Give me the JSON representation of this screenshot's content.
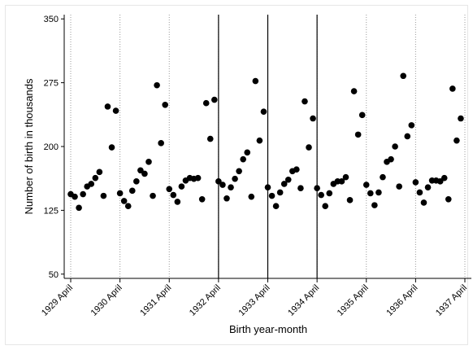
{
  "chart_data": {
    "type": "scatter",
    "title": "",
    "xlabel": "Birth year-month",
    "ylabel": "Number of birth in thousands",
    "ylim": [
      45,
      355
    ],
    "yticks": [
      50,
      125,
      200,
      275,
      350
    ],
    "x_tick_labels": [
      "1929 April",
      "1930 April",
      "1931 April",
      "1932 April",
      "1933 April",
      "1934 April",
      "1935 April",
      "1936 April",
      "1937 April"
    ],
    "x_range_months": [
      0,
      96
    ],
    "solid_vertical_lines_at_tick": [
      "1932 April",
      "1933 April",
      "1934 April"
    ],
    "dotted_vertical_gridlines": true,
    "legend": "none",
    "marker_color": "#000000",
    "points": [
      {
        "x": 0,
        "y": 144
      },
      {
        "x": 1,
        "y": 141
      },
      {
        "x": 2,
        "y": 128
      },
      {
        "x": 3,
        "y": 144
      },
      {
        "x": 4,
        "y": 153
      },
      {
        "x": 5,
        "y": 156
      },
      {
        "x": 6,
        "y": 163
      },
      {
        "x": 7,
        "y": 170
      },
      {
        "x": 8,
        "y": 142
      },
      {
        "x": 9,
        "y": 247
      },
      {
        "x": 10,
        "y": 199
      },
      {
        "x": 11,
        "y": 242
      },
      {
        "x": 12,
        "y": 145
      },
      {
        "x": 13,
        "y": 136
      },
      {
        "x": 14,
        "y": 130
      },
      {
        "x": 15,
        "y": 148
      },
      {
        "x": 16,
        "y": 159
      },
      {
        "x": 17,
        "y": 172
      },
      {
        "x": 18,
        "y": 168
      },
      {
        "x": 19,
        "y": 182
      },
      {
        "x": 20,
        "y": 142
      },
      {
        "x": 21,
        "y": 272
      },
      {
        "x": 22,
        "y": 204
      },
      {
        "x": 23,
        "y": 249
      },
      {
        "x": 24,
        "y": 150
      },
      {
        "x": 25,
        "y": 143
      },
      {
        "x": 26,
        "y": 135
      },
      {
        "x": 27,
        "y": 153
      },
      {
        "x": 28,
        "y": 160
      },
      {
        "x": 29,
        "y": 163
      },
      {
        "x": 30,
        "y": 162
      },
      {
        "x": 31,
        "y": 163
      },
      {
        "x": 32,
        "y": 138
      },
      {
        "x": 33,
        "y": 251
      },
      {
        "x": 34,
        "y": 209
      },
      {
        "x": 35,
        "y": 255
      },
      {
        "x": 36,
        "y": 159
      },
      {
        "x": 37,
        "y": 155
      },
      {
        "x": 38,
        "y": 139
      },
      {
        "x": 39,
        "y": 152
      },
      {
        "x": 40,
        "y": 162
      },
      {
        "x": 41,
        "y": 171
      },
      {
        "x": 42,
        "y": 185
      },
      {
        "x": 43,
        "y": 193
      },
      {
        "x": 44,
        "y": 141
      },
      {
        "x": 45,
        "y": 277
      },
      {
        "x": 46,
        "y": 207
      },
      {
        "x": 47,
        "y": 241
      },
      {
        "x": 48,
        "y": 152
      },
      {
        "x": 49,
        "y": 142
      },
      {
        "x": 50,
        "y": 130
      },
      {
        "x": 51,
        "y": 146
      },
      {
        "x": 52,
        "y": 156
      },
      {
        "x": 53,
        "y": 161
      },
      {
        "x": 54,
        "y": 171
      },
      {
        "x": 55,
        "y": 173
      },
      {
        "x": 56,
        "y": 151
      },
      {
        "x": 57,
        "y": 253
      },
      {
        "x": 58,
        "y": 199
      },
      {
        "x": 59,
        "y": 233
      },
      {
        "x": 60,
        "y": 151
      },
      {
        "x": 61,
        "y": 143
      },
      {
        "x": 62,
        "y": 130
      },
      {
        "x": 63,
        "y": 145
      },
      {
        "x": 64,
        "y": 156
      },
      {
        "x": 65,
        "y": 159
      },
      {
        "x": 66,
        "y": 159
      },
      {
        "x": 67,
        "y": 164
      },
      {
        "x": 68,
        "y": 137
      },
      {
        "x": 69,
        "y": 265
      },
      {
        "x": 70,
        "y": 214
      },
      {
        "x": 71,
        "y": 237
      },
      {
        "x": 72,
        "y": 155
      },
      {
        "x": 73,
        "y": 145
      },
      {
        "x": 74,
        "y": 131
      },
      {
        "x": 75,
        "y": 146
      },
      {
        "x": 76,
        "y": 164
      },
      {
        "x": 77,
        "y": 182
      },
      {
        "x": 78,
        "y": 185
      },
      {
        "x": 79,
        "y": 200
      },
      {
        "x": 80,
        "y": 153
      },
      {
        "x": 81,
        "y": 283
      },
      {
        "x": 82,
        "y": 212
      },
      {
        "x": 83,
        "y": 225
      },
      {
        "x": 84,
        "y": 158
      },
      {
        "x": 85,
        "y": 146
      },
      {
        "x": 86,
        "y": 134
      },
      {
        "x": 87,
        "y": 152
      },
      {
        "x": 88,
        "y": 160
      },
      {
        "x": 89,
        "y": 160
      },
      {
        "x": 90,
        "y": 159
      },
      {
        "x": 91,
        "y": 163
      },
      {
        "x": 92,
        "y": 138
      },
      {
        "x": 93,
        "y": 268
      },
      {
        "x": 94,
        "y": 207
      },
      {
        "x": 95,
        "y": 233
      }
    ]
  }
}
